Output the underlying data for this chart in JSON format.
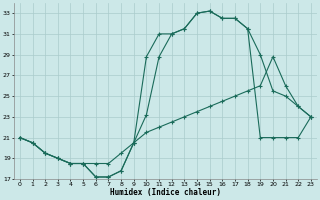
{
  "xlabel": "Humidex (Indice chaleur)",
  "bg_color": "#cce8e8",
  "grid_color": "#aacccc",
  "line_color": "#1a6b5a",
  "xlim": [
    -0.5,
    23.5
  ],
  "ylim": [
    17,
    34
  ],
  "xticks": [
    0,
    1,
    2,
    3,
    4,
    5,
    6,
    7,
    8,
    9,
    10,
    11,
    12,
    13,
    14,
    15,
    16,
    17,
    18,
    19,
    20,
    21,
    22,
    23
  ],
  "yticks": [
    17,
    19,
    21,
    23,
    25,
    27,
    29,
    31,
    33
  ],
  "line1_x": [
    0,
    1,
    2,
    3,
    4,
    5,
    6,
    7,
    8,
    9,
    10,
    11,
    12,
    13,
    14,
    15,
    16,
    17,
    18,
    19,
    20,
    21,
    22,
    23
  ],
  "line1_y": [
    21.0,
    20.5,
    19.5,
    19.0,
    18.5,
    18.5,
    17.2,
    17.2,
    17.8,
    20.5,
    28.8,
    31.0,
    31.0,
    31.5,
    33.0,
    33.2,
    32.5,
    32.5,
    31.5,
    21.0,
    21.0,
    21.0,
    21.0,
    23.0
  ],
  "line2_x": [
    0,
    1,
    2,
    3,
    4,
    5,
    6,
    7,
    8,
    9,
    10,
    11,
    12,
    13,
    14,
    15,
    16,
    17,
    18,
    19,
    20,
    21,
    22,
    23
  ],
  "line2_y": [
    21.0,
    20.5,
    19.5,
    19.0,
    18.5,
    18.5,
    17.2,
    17.2,
    17.8,
    20.5,
    23.2,
    28.8,
    31.0,
    31.5,
    33.0,
    33.2,
    32.5,
    32.5,
    31.5,
    29.0,
    25.5,
    25.0,
    24.0,
    23.0
  ],
  "line3_x": [
    0,
    1,
    2,
    3,
    4,
    5,
    6,
    7,
    8,
    9,
    10,
    11,
    12,
    13,
    14,
    15,
    16,
    17,
    18,
    19,
    20,
    21,
    22,
    23
  ],
  "line3_y": [
    21.0,
    20.5,
    19.5,
    19.0,
    18.5,
    18.5,
    18.5,
    18.5,
    19.5,
    20.5,
    21.5,
    22.0,
    22.5,
    23.0,
    23.5,
    24.0,
    24.5,
    25.0,
    25.5,
    26.0,
    28.8,
    26.0,
    24.0,
    23.0
  ]
}
